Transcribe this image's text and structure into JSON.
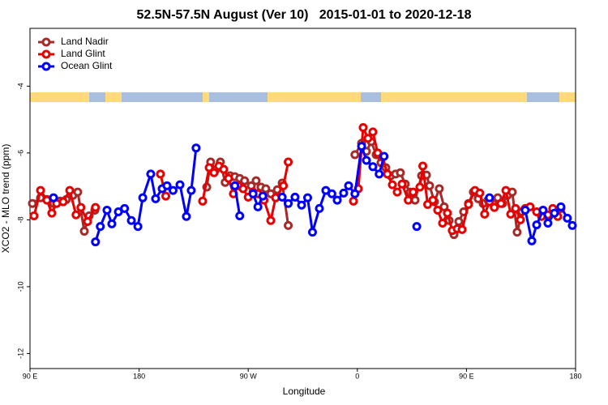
{
  "chart_data": {
    "type": "line",
    "title": "52.5N-57.5N August (Ver 10)   2015-01-01 to 2020-12-18",
    "xlabel": "Longitude",
    "ylabel": "XCO2 - MLO trend (ppm)",
    "xlim": [
      90,
      540
    ],
    "xticks": [
      {
        "value": 90,
        "label": "90 E"
      },
      180,
      {
        "value": 270,
        "label": "90 W"
      },
      {
        "value": 360,
        "label": "0"
      },
      {
        "value": 450,
        "label": "90 E"
      },
      {
        "value": 540,
        "label": "180"
      }
    ],
    "ylim": [
      -12.45,
      -2.27
    ],
    "yticks": [
      -4,
      -6,
      -8,
      -10,
      -12
    ],
    "legend": "upper left",
    "series": [
      {
        "name": "Land Nadir",
        "color": "#a52a2a",
        "x": [
          92,
          98.7,
          104,
          109.4,
          114.7,
          120,
          125.4,
          129.4,
          134.8,
          138.8,
          143.5,
          null,
          235.8,
          239,
          243,
          247,
          251,
          255,
          259,
          263,
          267,
          272.5,
          276.5,
          280.5,
          284.5,
          288.6,
          294,
          298,
          303,
          null,
          358,
          363.5,
          367.5,
          371.5,
          375.5,
          379.5,
          383.5,
          387.5,
          391.5,
          395.5,
          399.5,
          403.6,
          407.6,
          413,
          417,
          419.6,
          423.6,
          427.6,
          431.6,
          435.7,
          439.7,
          443.7,
          447.7,
          451.7,
          455.7,
          459.7,
          463.7,
          467.8,
          471.8,
          475.8,
          479.8,
          483.8,
          487.8,
          491.8,
          495.8
        ],
        "values": [
          -7.51,
          -7.34,
          -7.39,
          -7.51,
          -7.44,
          -7.39,
          -7.27,
          -7.17,
          -8.34,
          -7.88,
          -7.71,
          null,
          -7.02,
          -6.27,
          -6.51,
          -6.27,
          -6.88,
          -6.68,
          -6.71,
          -6.76,
          -6.83,
          -6.98,
          -6.83,
          -7.02,
          -7.07,
          -7.22,
          -7.1,
          -6.9,
          -8.17,
          null,
          -6.05,
          -5.71,
          -5.95,
          -5.66,
          -6.05,
          -6.29,
          -6.44,
          -6.68,
          -6.63,
          -6.59,
          -6.93,
          -7.17,
          -7.41,
          -6.68,
          -6.66,
          -6.98,
          -7.46,
          -7.07,
          -7.61,
          -8.02,
          -8.44,
          -8.05,
          -7.76,
          -7.51,
          -7.17,
          -7.37,
          -7.51,
          -7.41,
          -7.51,
          -7.34,
          -7.51,
          -7.27,
          -7.17,
          -8.37,
          -7.76
        ]
      },
      {
        "name": "Land Glint",
        "color": "#e60000",
        "x": [
          93.3,
          98.7,
          104,
          108,
          112,
          117.4,
          122.8,
          128,
          132,
          137.5,
          144,
          null,
          197.6,
          202,
          null,
          232.4,
          237.8,
          241.8,
          245.8,
          249.8,
          253.8,
          257.8,
          261.8,
          265.8,
          270,
          274,
          278,
          283,
          288.6,
          292.6,
          299,
          303,
          null,
          356.8,
          360.8,
          364.8,
          368.8,
          372.8,
          376.8,
          380.8,
          384.8,
          388.9,
          392.9,
          396.9,
          402,
          406,
          411.6,
          414,
          418,
          422.3,
          426.3,
          430.3,
          434.3,
          438.3,
          442.4,
          446.4,
          451.7,
          457,
          461,
          465,
          469,
          473,
          478.5,
          482.5,
          486.5,
          490.5,
          494.5,
          498.5,
          502.5,
          507.9,
          511.9,
          517.2,
          521.2,
          525.3,
          527.9
        ],
        "values": [
          -7.88,
          -7.12,
          -7.41,
          -7.8,
          -7.51,
          -7.46,
          -7.12,
          -7.85,
          -7.63,
          -8.05,
          -7.63,
          null,
          -6.63,
          -7.29,
          null,
          -7.44,
          -6.44,
          -6.59,
          -6.39,
          -6.49,
          -6.76,
          -7.22,
          -6.98,
          -7.07,
          -7.32,
          -7.17,
          -7.22,
          -7.41,
          -8.02,
          -7.34,
          -6.98,
          -6.27,
          null,
          -7.44,
          -7.07,
          -5.24,
          -5.56,
          -5.37,
          -6.0,
          -6.12,
          -6.63,
          -6.95,
          -7.17,
          -6.93,
          -7.41,
          -7.17,
          -7.02,
          -6.39,
          -7.54,
          -7.41,
          -7.71,
          -8.1,
          -7.8,
          -8.32,
          -8.27,
          -8.29,
          -7.54,
          -7.12,
          -7.2,
          -7.83,
          -7.46,
          -7.63,
          -7.51,
          -7.12,
          -7.83,
          -7.66,
          -8.0,
          -7.66,
          -7.61,
          -7.76,
          -7.9,
          -7.85,
          -7.66,
          -7.9,
          -7.66
        ]
      },
      {
        "name": "Ocean Glint",
        "color": "#0000ff",
        "x": [
          109.4,
          null,
          144,
          148,
          153.5,
          157.5,
          162.9,
          168,
          173.6,
          179,
          183,
          189.6,
          193.6,
          199,
          203,
          208,
          213.7,
          219,
          223,
          227,
          null,
          259,
          263,
          null,
          274,
          278,
          282,
          null,
          298,
          303,
          308.6,
          314,
          319,
          323,
          328.7,
          334,
          339,
          343.4,
          348.7,
          352.8,
          358,
          363.5,
          367.5,
          372.8,
          378,
          382,
          null,
          409,
          null,
          469,
          null,
          498.5,
          503.9,
          507.9,
          513.2,
          517.2,
          522.6,
          527.9,
          533.2,
          537.3
        ],
        "values": [
          -7.34,
          null,
          -8.66,
          -8.2,
          -7.71,
          -8.12,
          -7.76,
          -7.66,
          -8.02,
          -8.2,
          -7.34,
          -6.63,
          -7.37,
          -7.07,
          -6.98,
          -7.12,
          -6.95,
          -7.9,
          -7.12,
          -5.85,
          null,
          -6.98,
          -7.88,
          null,
          -7.22,
          -7.61,
          -7.29,
          null,
          -7.32,
          -7.51,
          -7.32,
          -7.56,
          -7.34,
          -8.37,
          -7.66,
          -7.12,
          -7.22,
          -7.41,
          -7.2,
          -6.98,
          -7.22,
          -5.8,
          -6.22,
          -6.41,
          -6.63,
          -6.1,
          null,
          -8.2,
          null,
          -7.34,
          null,
          -7.71,
          -8.63,
          -8.15,
          -7.71,
          -8.1,
          -7.8,
          -7.61,
          -7.95,
          -8.17
        ]
      }
    ]
  }
}
